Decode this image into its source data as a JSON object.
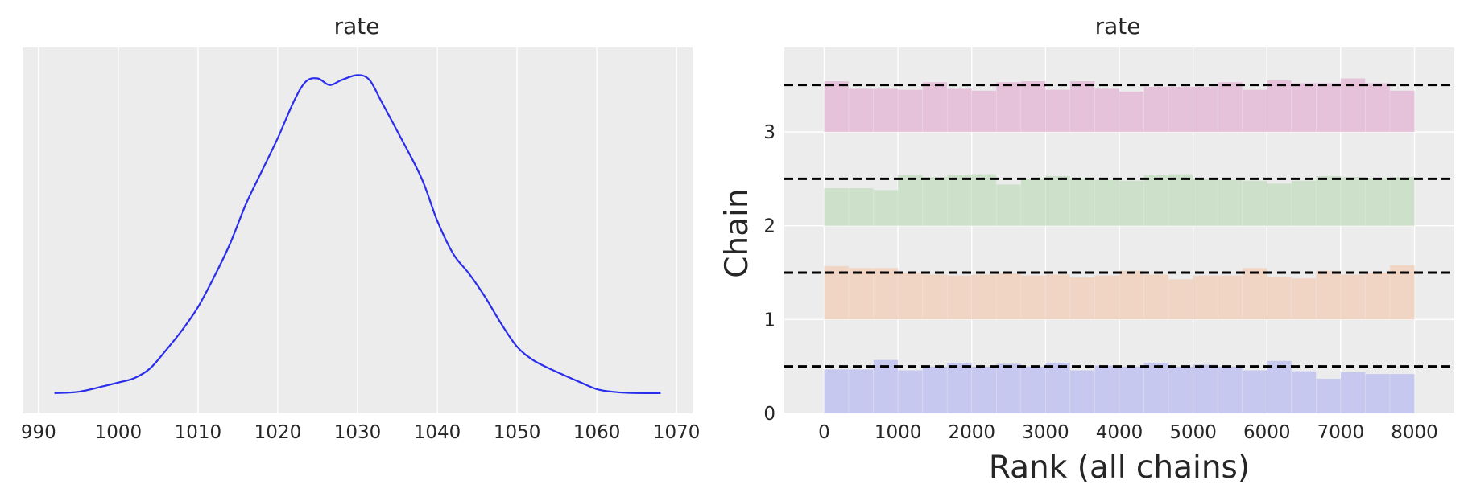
{
  "chart_data": [
    {
      "type": "line",
      "title": "rate",
      "xlabel": "",
      "ylabel": "",
      "xlim": [
        988,
        1072
      ],
      "xticks": [
        "990",
        "1000",
        "1010",
        "1020",
        "1030",
        "1040",
        "1050",
        "1060",
        "1070"
      ],
      "grid": true,
      "color": "#2a2eec",
      "x": [
        992,
        995,
        998,
        1000,
        1002,
        1004,
        1006,
        1008,
        1010,
        1012,
        1014,
        1016,
        1018,
        1020,
        1022,
        1023.5,
        1025,
        1026.5,
        1028,
        1030,
        1031.5,
        1033,
        1035,
        1038,
        1040,
        1042,
        1044,
        1046,
        1048,
        1050,
        1052,
        1054,
        1056,
        1058,
        1060,
        1062,
        1064,
        1066,
        1068
      ],
      "y": [
        0.01,
        0.014,
        0.03,
        0.042,
        0.055,
        0.085,
        0.14,
        0.2,
        0.27,
        0.36,
        0.46,
        0.58,
        0.68,
        0.78,
        0.89,
        0.95,
        0.96,
        0.94,
        0.955,
        0.97,
        0.955,
        0.89,
        0.8,
        0.66,
        0.53,
        0.43,
        0.37,
        0.3,
        0.22,
        0.15,
        0.11,
        0.085,
        0.063,
        0.042,
        0.022,
        0.014,
        0.011,
        0.01,
        0.01
      ]
    },
    {
      "type": "bar",
      "title": "rate",
      "xlabel": "Rank (all chains)",
      "ylabel": "Chain",
      "xlim": [
        -540,
        8540
      ],
      "ylim": [
        0,
        3.9
      ],
      "xticks": [
        "0",
        "1000",
        "2000",
        "3000",
        "4000",
        "5000",
        "6000",
        "7000",
        "8000"
      ],
      "yticks": [
        "0",
        "1",
        "2",
        "3"
      ],
      "grid": true,
      "reference_lines": [
        0.5,
        1.5,
        2.5,
        3.5
      ],
      "bin_edges": [
        0,
        333,
        667,
        1000,
        1333,
        1667,
        2000,
        2333,
        2667,
        3000,
        3333,
        3667,
        4000,
        4333,
        4667,
        5000,
        5333,
        5667,
        6000,
        6333,
        6667,
        7000,
        7333,
        7667,
        8000
      ],
      "series": [
        {
          "name": "0",
          "color": "#c6c8ef",
          "values": [
            0.47,
            0.47,
            0.57,
            0.46,
            0.5,
            0.54,
            0.5,
            0.53,
            0.5,
            0.54,
            0.46,
            0.51,
            0.5,
            0.54,
            0.5,
            0.52,
            0.5,
            0.46,
            0.56,
            0.45,
            0.37,
            0.44,
            0.42,
            0.42
          ]
        },
        {
          "name": "1",
          "color": "#f1d5c4",
          "values": [
            0.57,
            0.55,
            0.55,
            0.5,
            0.48,
            0.47,
            0.48,
            0.49,
            0.47,
            0.48,
            0.45,
            0.47,
            0.52,
            0.48,
            0.43,
            0.47,
            0.47,
            0.55,
            0.46,
            0.44,
            0.52,
            0.48,
            0.5,
            0.58
          ]
        },
        {
          "name": "2",
          "color": "#cde0c9",
          "values": [
            0.4,
            0.4,
            0.38,
            0.54,
            0.52,
            0.54,
            0.55,
            0.44,
            0.5,
            0.53,
            0.5,
            0.49,
            0.48,
            0.54,
            0.55,
            0.5,
            0.49,
            0.48,
            0.45,
            0.48,
            0.53,
            0.52,
            0.51,
            0.52
          ]
        },
        {
          "name": "3",
          "color": "#e5c1da",
          "values": [
            0.54,
            0.46,
            0.46,
            0.45,
            0.53,
            0.46,
            0.44,
            0.53,
            0.54,
            0.45,
            0.54,
            0.46,
            0.43,
            0.48,
            0.48,
            0.48,
            0.53,
            0.45,
            0.55,
            0.52,
            0.52,
            0.57,
            0.52,
            0.44
          ]
        }
      ]
    }
  ]
}
